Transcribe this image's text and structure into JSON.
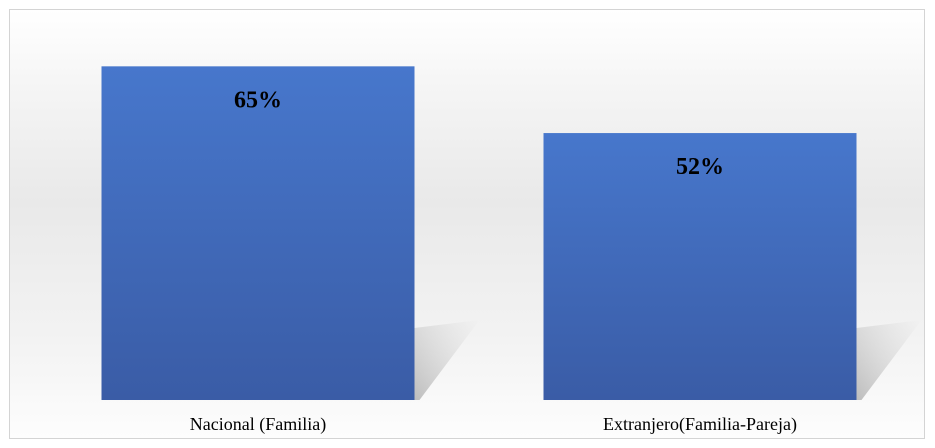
{
  "chart_data": {
    "type": "bar",
    "categories": [
      "Nacional (Familia)",
      "Extranjero(Familia-Pareja)"
    ],
    "values": [
      65,
      52
    ],
    "data_labels": [
      "65%",
      "52%"
    ],
    "ylim": [
      0,
      75
    ],
    "grid": false,
    "colors": {
      "bar_top": "#4472c4",
      "bar_bottom": "#3a5fa8",
      "shadow": "#9a9a9a"
    }
  }
}
